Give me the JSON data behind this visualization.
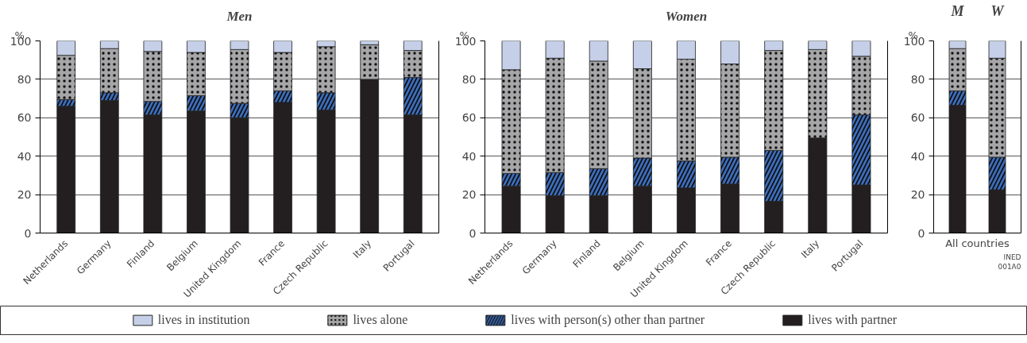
{
  "chart_data": [
    {
      "type": "bar",
      "title": "Men",
      "ylabel": "%",
      "stacked": true,
      "categories": [
        "Netherlands",
        "Germany",
        "Finland",
        "Belgium",
        "United Kingdom",
        "France",
        "Czech Republic",
        "Italy",
        "Portugal"
      ],
      "ylim": [
        0,
        100
      ],
      "yticks": [
        0,
        20,
        40,
        60,
        80,
        100
      ],
      "grid": "y",
      "legend": "bottom",
      "series": [
        {
          "name": "lives with partner",
          "color": "#231f20",
          "values": [
            66,
            69,
            61.5,
            63.5,
            60,
            68,
            64,
            80,
            61.5
          ]
        },
        {
          "name": "lives with person(s) other than partner",
          "color": "#3d6fc0",
          "values": [
            3.5,
            4,
            7,
            8,
            7.5,
            6,
            9,
            0,
            19.5
          ]
        },
        {
          "name": "lives alone",
          "color": "#a6a6a8",
          "values": [
            23,
            23,
            26,
            22.5,
            28,
            20,
            24,
            18,
            14
          ]
        },
        {
          "name": "lives in institution",
          "color": "#c5cfe8",
          "values": [
            7.5,
            4,
            5.5,
            6,
            4.5,
            6,
            3,
            2,
            5
          ]
        }
      ]
    },
    {
      "type": "bar",
      "title": "Women",
      "ylabel": "%",
      "stacked": true,
      "categories": [
        "Netherlands",
        "Germany",
        "Finland",
        "Belgium",
        "United Kingdom",
        "France",
        "Czech Republic",
        "Italy",
        "Portugal"
      ],
      "ylim": [
        0,
        100
      ],
      "yticks": [
        0,
        20,
        40,
        60,
        80,
        100
      ],
      "grid": "y",
      "series": [
        {
          "color": "#231f20",
          "values": [
            24.5,
            19.5,
            19.5,
            24.5,
            23.5,
            25.5,
            16.5,
            49.5,
            25
          ]
        },
        {
          "color": "#3d6fc0",
          "values": [
            6.5,
            12,
            14,
            14.5,
            14,
            14,
            26.5,
            0,
            36.5
          ]
        },
        {
          "color": "#a6a6a8",
          "values": [
            54,
            59.5,
            56,
            46.5,
            53,
            48.5,
            52,
            46,
            30.5
          ]
        },
        {
          "color": "#c5cfe8",
          "values": [
            15,
            9,
            10.5,
            14.5,
            9.5,
            12,
            5,
            4.5,
            8
          ]
        }
      ]
    },
    {
      "type": "bar",
      "ylabel": "%",
      "xlabel": "All countries",
      "stacked": true,
      "categories": [
        "M",
        "W"
      ],
      "ylim": [
        0,
        100
      ],
      "yticks": [
        0,
        20,
        40,
        60,
        80,
        100
      ],
      "grid": "y",
      "annotations": [
        "INED",
        "001A0"
      ],
      "series": [
        {
          "color": "#231f20",
          "values": [
            66.5,
            22.5
          ]
        },
        {
          "color": "#3d6fc0",
          "values": [
            7.5,
            17
          ]
        },
        {
          "color": "#a6a6a8",
          "values": [
            22,
            51.5
          ]
        },
        {
          "color": "#c5cfe8",
          "values": [
            4,
            9
          ]
        }
      ]
    }
  ]
}
